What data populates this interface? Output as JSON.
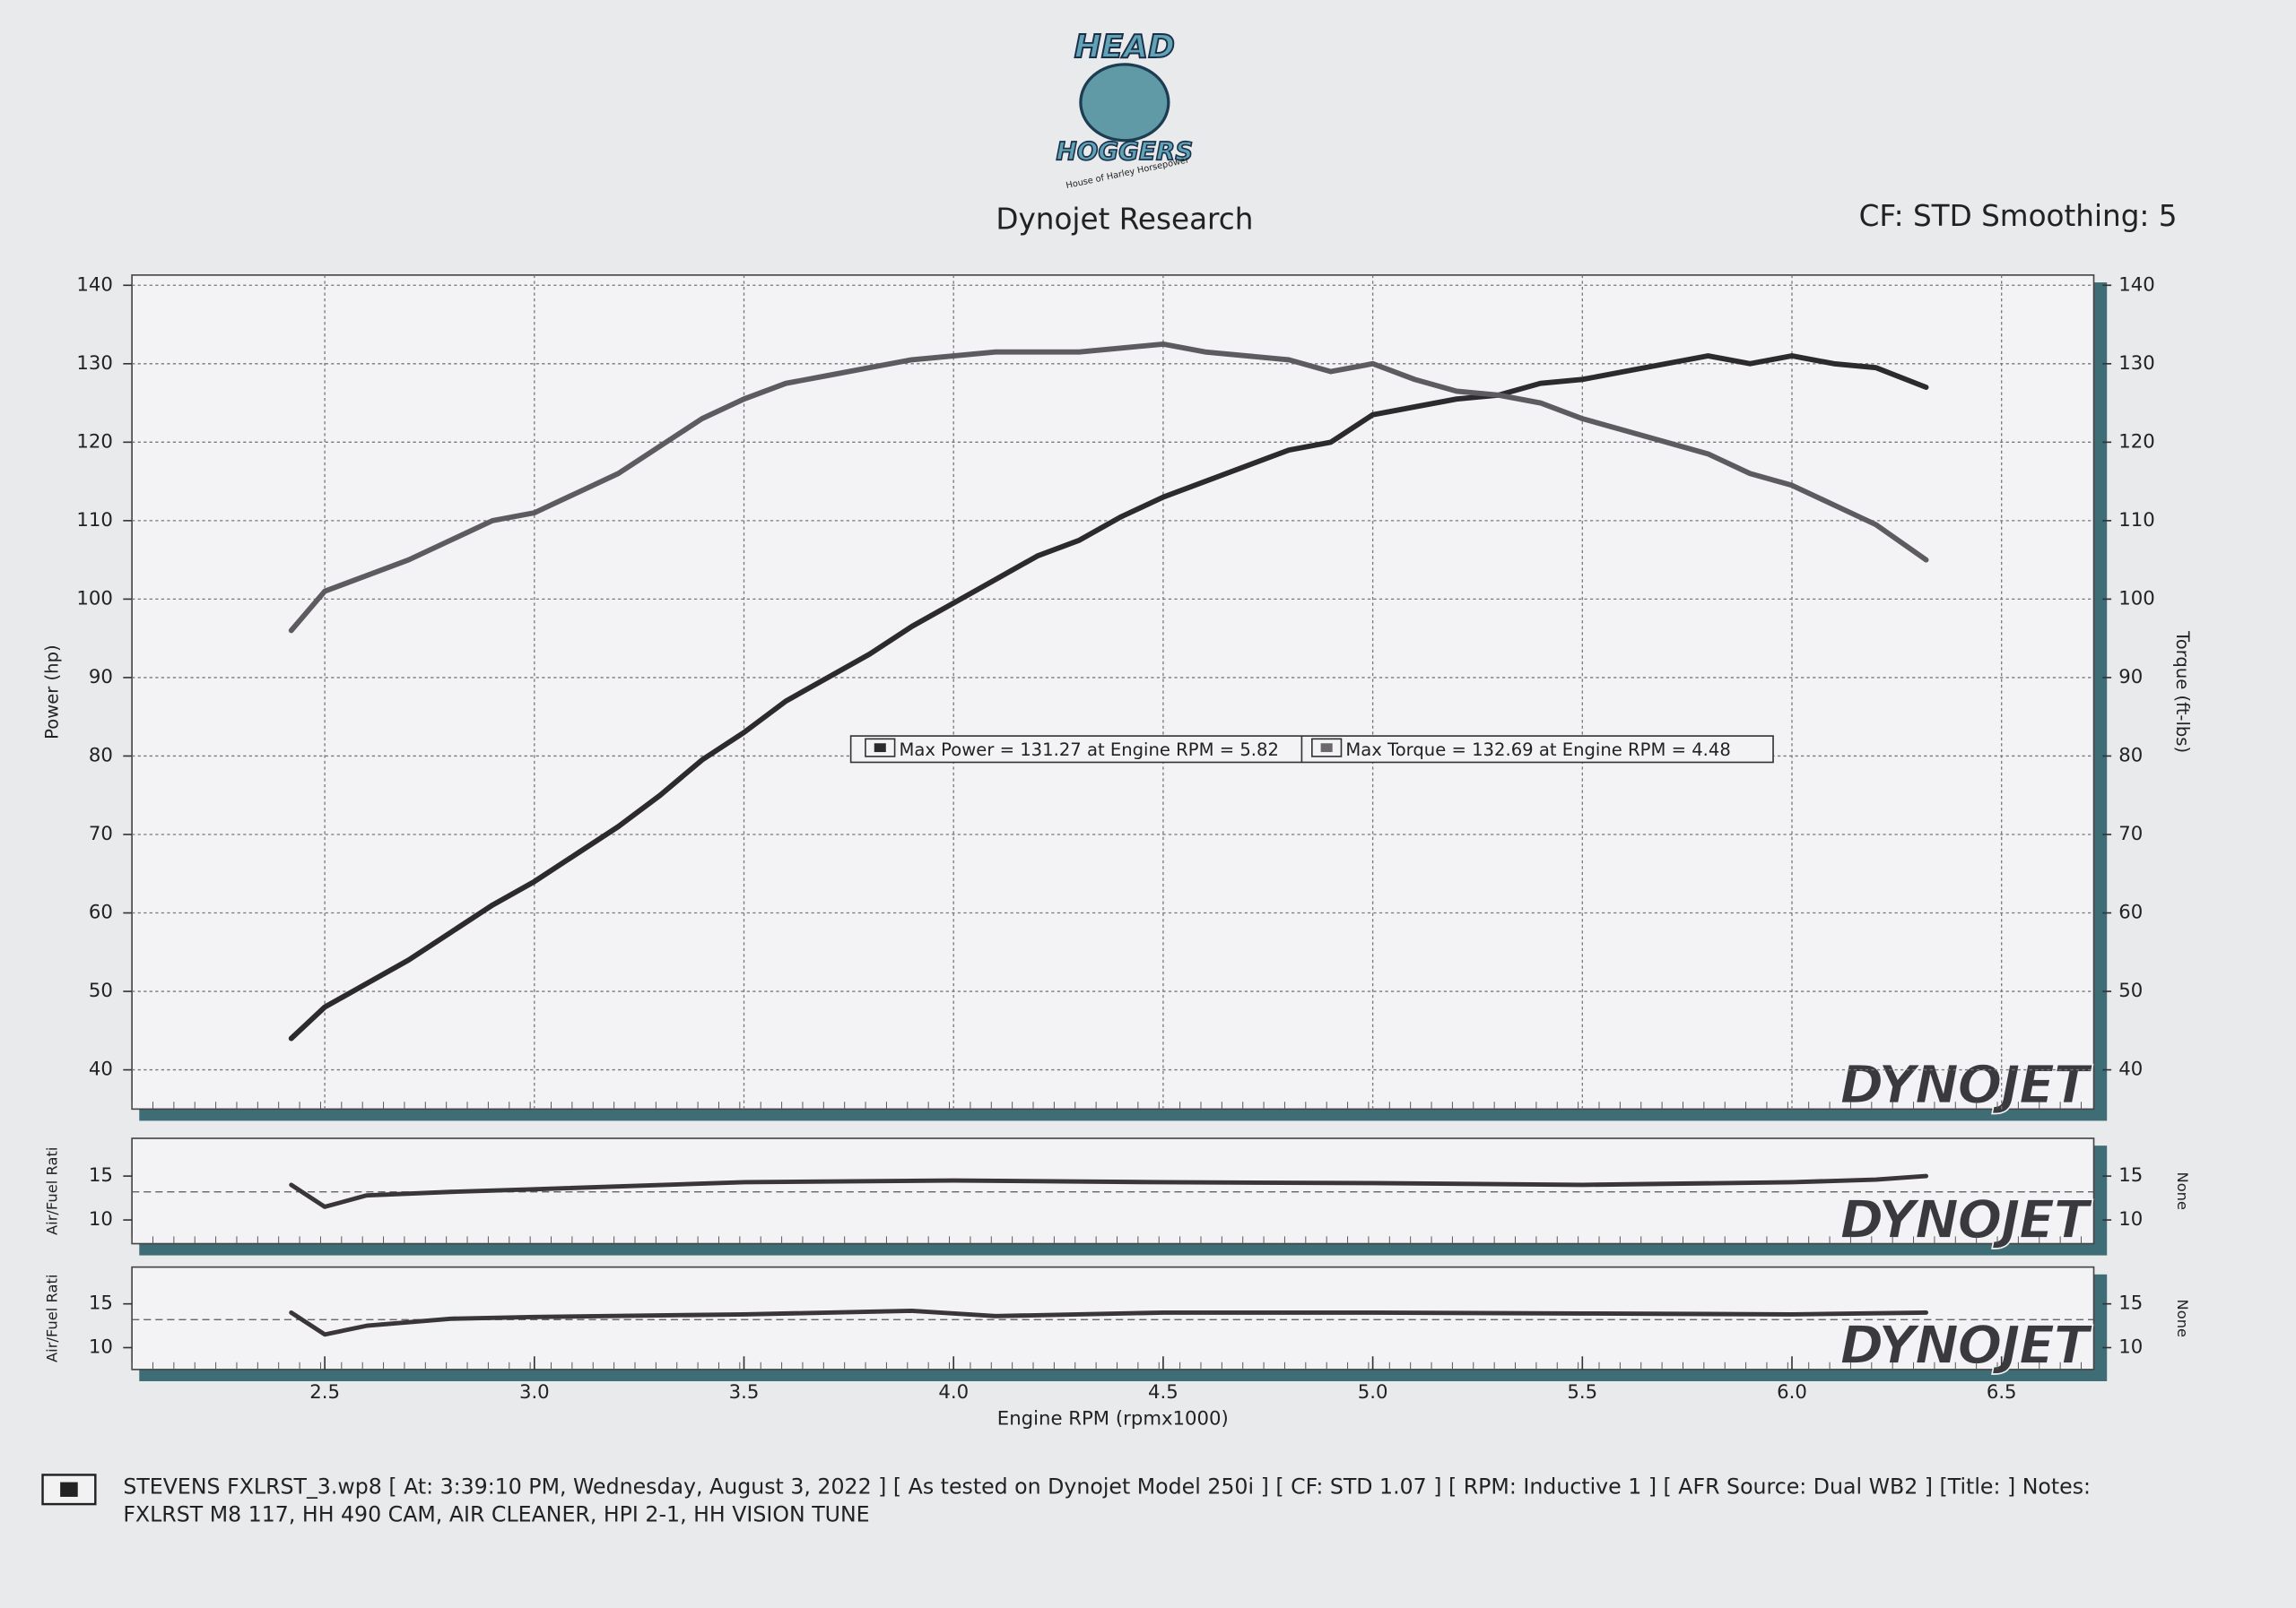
{
  "logo": {
    "line1": "HEAD",
    "line2": "HOGGERS",
    "tagline": "House of Harley Horsepower"
  },
  "header": {
    "title": "Dynojet Research",
    "settings": "CF: STD Smoothing: 5"
  },
  "watermark": "DYNOJET",
  "chart_data": [
    {
      "type": "line",
      "ylabel": "Power (hp)",
      "y2label": "Torque (ft-lbs)",
      "annotations": [
        "Max Power = 131.27 at Engine RPM = 5.82",
        "Max Torque = 132.69 at Engine RPM = 4.48"
      ],
      "x": [
        2.42,
        2.5,
        2.6,
        2.7,
        2.8,
        2.9,
        3.0,
        3.1,
        3.2,
        3.3,
        3.4,
        3.5,
        3.6,
        3.7,
        3.8,
        3.9,
        4.0,
        4.1,
        4.2,
        4.3,
        4.4,
        4.5,
        4.6,
        4.7,
        4.8,
        4.9,
        5.0,
        5.1,
        5.2,
        5.3,
        5.4,
        5.5,
        5.6,
        5.7,
        5.8,
        5.9,
        6.0,
        6.1,
        6.2,
        6.32
      ],
      "series": [
        {
          "name": "Power",
          "color": "#2c2a2d",
          "axis": "y",
          "values": [
            44,
            48,
            51,
            54,
            57.5,
            61,
            64,
            67.5,
            71,
            75,
            79.5,
            83,
            87,
            90,
            93,
            96.5,
            99.5,
            102.5,
            105.5,
            107.5,
            110.5,
            113,
            115,
            117,
            119,
            120,
            123.5,
            124.5,
            125.5,
            126,
            127.5,
            128,
            129,
            130,
            131,
            130,
            131,
            130,
            129.5,
            127
          ]
        },
        {
          "name": "Torque",
          "color": "#5e5b60",
          "axis": "y2",
          "values": [
            96,
            101,
            103,
            105,
            107.5,
            110,
            111,
            113.5,
            116,
            119.5,
            123,
            125.5,
            127.5,
            128.5,
            129.5,
            130.5,
            131,
            131.5,
            131.5,
            131.5,
            132,
            132.5,
            131.5,
            131,
            130.5,
            129,
            130,
            128,
            126.5,
            126,
            125,
            123,
            121.5,
            120,
            118.5,
            116,
            114.5,
            112,
            109.5,
            105
          ]
        }
      ],
      "xlim": [
        2.04,
        6.72
      ],
      "xticks": [
        2.5,
        {
          "value": 3,
          "label": "3.0"
        },
        3.5,
        {
          "value": 4,
          "label": "4.0"
        },
        4.5,
        {
          "value": 5,
          "label": "5.0"
        },
        5.5,
        {
          "value": 6,
          "label": "6.0"
        },
        6.5
      ],
      "ylim": [
        35,
        141.3
      ],
      "yticks": [
        40,
        50,
        60,
        70,
        80,
        90,
        100,
        110,
        120,
        130,
        140
      ],
      "y2lim": [
        35,
        141.3
      ],
      "y2ticks": [
        40,
        50,
        60,
        70,
        80,
        90,
        100,
        110,
        120,
        130,
        140
      ],
      "grid": true
    },
    {
      "type": "line",
      "ylabel": "Air/Fuel Rati",
      "y2label": "None",
      "x": [
        2.42,
        2.5,
        2.6,
        2.8,
        3.0,
        3.5,
        4.0,
        4.5,
        5.0,
        5.5,
        6.0,
        6.2,
        6.32
      ],
      "series": [
        {
          "name": "AFR",
          "color": "#3a3638",
          "axis": "y",
          "values": [
            14,
            11.5,
            12.8,
            13.2,
            13.5,
            14.3,
            14.5,
            14.3,
            14.2,
            14,
            14.3,
            14.6,
            15
          ]
        }
      ],
      "reference_line": 13.2,
      "xlim": [
        2.04,
        6.72
      ],
      "ylim": [
        7.3,
        19.3
      ],
      "yticks": [
        10,
        15
      ],
      "y2lim": [
        7.3,
        19.3
      ],
      "y2ticks": [
        10,
        15
      ],
      "grid": false
    },
    {
      "type": "line",
      "ylabel": "Air/Fuel Rati",
      "y2label": "None",
      "xlabel": "Engine RPM (rpmx1000)",
      "x": [
        2.42,
        2.5,
        2.6,
        2.8,
        3.0,
        3.5,
        3.9,
        4.1,
        4.5,
        5.0,
        5.5,
        6.0,
        6.32
      ],
      "series": [
        {
          "name": "AFR",
          "color": "#3a3638",
          "axis": "y",
          "values": [
            14,
            11.5,
            12.5,
            13.3,
            13.5,
            13.8,
            14.2,
            13.6,
            14,
            14,
            13.9,
            13.8,
            14
          ]
        }
      ],
      "reference_line": 13.2,
      "xlim": [
        2.04,
        6.72
      ],
      "xticks": [
        2.5,
        {
          "value": 3,
          "label": "3.0"
        },
        3.5,
        {
          "value": 4,
          "label": "4.0"
        },
        4.5,
        {
          "value": 5,
          "label": "5.0"
        },
        5.5,
        {
          "value": 6,
          "label": "6.0"
        },
        6.5
      ],
      "ylim": [
        7.5,
        19.2
      ],
      "yticks": [
        10,
        15
      ],
      "y2lim": [
        7.5,
        19.2
      ],
      "y2ticks": [
        10,
        15
      ],
      "grid": false
    }
  ],
  "footer": {
    "line1": "STEVENS FXLRST_3.wp8 [ At: 3:39:10 PM, Wednesday, August 3, 2022 ] [ As tested on Dynojet Model 250i ] [ CF: STD 1.07 ] [ RPM: Inductive 1 ] [ AFR Source: Dual WB2 ] [Title: ]  Notes:",
    "line2": "FXLRST M8 117, HH 490 CAM, AIR CLEANER, HPI 2-1, HH VISION TUNE"
  }
}
